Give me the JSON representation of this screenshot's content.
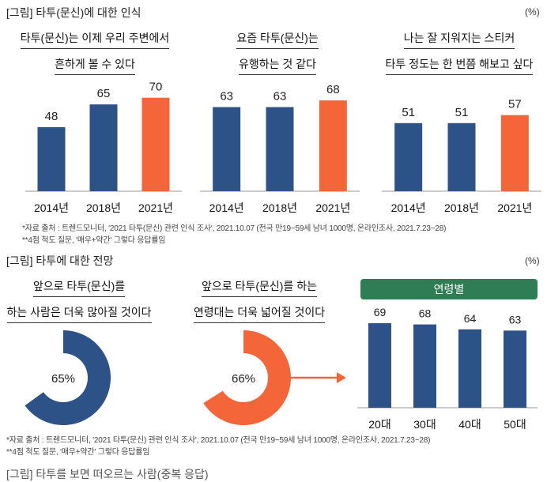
{
  "colors": {
    "blue": "#2d5288",
    "orange": "#f4663a",
    "green": "#2e7d55",
    "axis": "#bbbbbb"
  },
  "section1": {
    "title": "[그림] 타투(문신)에 대한 인식",
    "unit": "(%)",
    "notes": [
      "*자료 출처 : 트렌드모니터, '2021 타투(문신) 관련 인식 조사', 2021.10.07 (전국 만19~59세 남녀 1000명, 온라인조사, 2021.7.23~28)",
      "**4점 척도 질문, '매우+약간' 그렇다 응답률임"
    ]
  },
  "section2": {
    "title": "[그림]  타투에 대한 전망",
    "unit": "(%)",
    "age_header": "연령별",
    "notes": [
      "*자료 출처 : 트렌드모니터, '2021 타투(문신) 관련 인식 조사', 2021.10.07 (전국 만19~59세 남녀 1000명, 온라인조사, 2021.7.23~28)",
      "**4점 척도 질문, '매우+약간' 그렇다 응답률임"
    ]
  },
  "section3": {
    "title_partial": "[그림]  타투를 보면 떠오르는 사람(중복 응답)"
  },
  "chart_data": [
    {
      "type": "bar",
      "title_lines": [
        "타투(문신)는 이제 우리 주변에서",
        "흔하게 볼 수 있다"
      ],
      "categories": [
        "2014년",
        "2018년",
        "2021년"
      ],
      "values": [
        48,
        65,
        70
      ],
      "highlight_index": 2,
      "xlabel": "",
      "ylabel": "",
      "ylim": [
        0,
        80
      ],
      "grid": false
    },
    {
      "type": "bar",
      "title_lines": [
        "요즘 타투(문신)는",
        "유행하는 것 같다"
      ],
      "categories": [
        "2014년",
        "2018년",
        "2021년"
      ],
      "values": [
        63,
        63,
        68
      ],
      "highlight_index": 2,
      "xlabel": "",
      "ylabel": "",
      "ylim": [
        0,
        80
      ],
      "grid": false
    },
    {
      "type": "bar",
      "title_lines": [
        "나는 잘 지워지는 스티커",
        "타투 정도는 한 번쯤 해보고 싶다"
      ],
      "categories": [
        "2014년",
        "2018년",
        "2021년"
      ],
      "values": [
        51,
        51,
        57
      ],
      "highlight_index": 2,
      "xlabel": "",
      "ylabel": "",
      "ylim": [
        0,
        80
      ],
      "grid": false
    },
    {
      "type": "pie",
      "title_lines": [
        "앞으로 타투(문신)를",
        "하는 사람은 더욱 많아질 것이다"
      ],
      "value": 65,
      "label": "65%",
      "color": "#2d5288"
    },
    {
      "type": "pie",
      "title_lines": [
        "앞으로 타투(문신)를 하는",
        "연령대는 더욱 넓어질 것이다"
      ],
      "value": 66,
      "label": "66%",
      "color": "#f4663a"
    },
    {
      "type": "bar",
      "title": "연령별",
      "categories": [
        "20대",
        "30대",
        "40대",
        "50대"
      ],
      "values": [
        69,
        68,
        64,
        63
      ],
      "xlabel": "",
      "ylabel": "",
      "ylim": [
        0,
        80
      ],
      "grid": false
    }
  ]
}
